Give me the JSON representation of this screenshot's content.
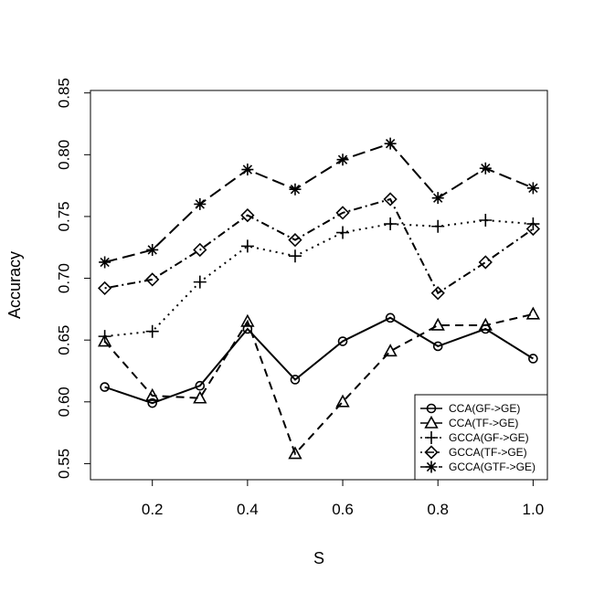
{
  "chart_data": {
    "type": "line",
    "title": "",
    "xlabel": "S",
    "ylabel": "Accuracy",
    "xlim": [
      0.07,
      1.03
    ],
    "ylim": [
      0.537,
      0.852
    ],
    "x_ticks": [
      0.2,
      0.4,
      0.6,
      0.8,
      1.0
    ],
    "x_tick_labels": [
      "0.2",
      "0.4",
      "0.6",
      "0.8",
      "1.0"
    ],
    "y_ticks": [
      0.55,
      0.6,
      0.65,
      0.7,
      0.75,
      0.8,
      0.85
    ],
    "y_tick_labels": [
      "0.55",
      "0.60",
      "0.65",
      "0.70",
      "0.75",
      "0.80",
      "0.85"
    ],
    "grid": false,
    "legend_position": "bottom-right",
    "x": [
      0.1,
      0.2,
      0.3,
      0.4,
      0.5,
      0.6,
      0.7,
      0.8,
      0.9,
      1.0
    ],
    "series": [
      {
        "name": "CCA(GF->GE)",
        "marker": "circle",
        "dash": "solid",
        "values": [
          0.612,
          0.599,
          0.613,
          0.659,
          0.618,
          0.649,
          0.668,
          0.645,
          0.659,
          0.635
        ]
      },
      {
        "name": "CCA(TF->GE)",
        "marker": "triangle",
        "dash": "dashed",
        "values": [
          0.649,
          0.605,
          0.603,
          0.665,
          0.558,
          0.6,
          0.641,
          0.662,
          0.662,
          0.671
        ]
      },
      {
        "name": "GCCA(GF->GE)",
        "marker": "plus",
        "dash": "dotted",
        "values": [
          0.653,
          0.657,
          0.697,
          0.726,
          0.718,
          0.737,
          0.744,
          0.742,
          0.747,
          0.744
        ]
      },
      {
        "name": "GCCA(TF->GE)",
        "marker": "diamond",
        "dash": "dotdash",
        "values": [
          0.692,
          0.699,
          0.723,
          0.751,
          0.731,
          0.753,
          0.764,
          0.688,
          0.713,
          0.74
        ]
      },
      {
        "name": "GCCA(GTF->GE)",
        "marker": "asterisk",
        "dash": "longdash",
        "values": [
          0.713,
          0.723,
          0.76,
          0.788,
          0.772,
          0.796,
          0.809,
          0.765,
          0.789,
          0.773
        ]
      }
    ]
  }
}
